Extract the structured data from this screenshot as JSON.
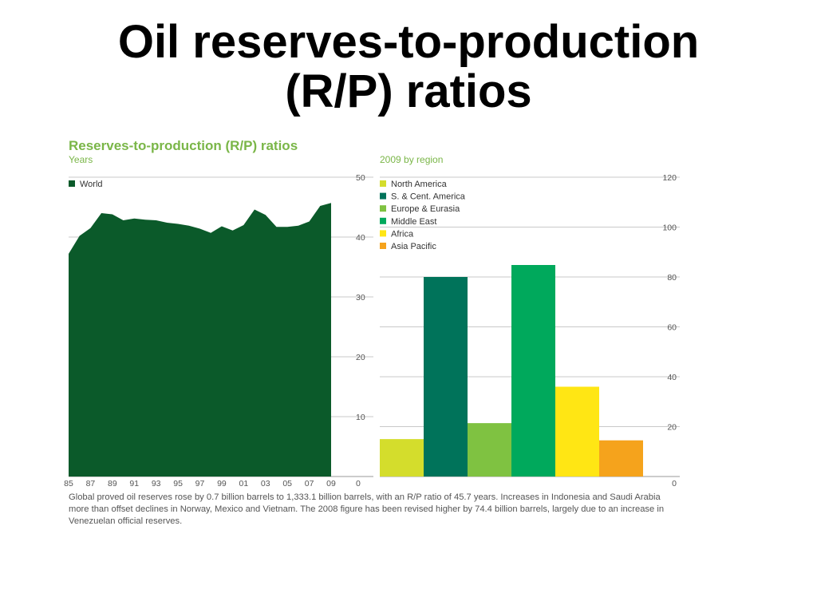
{
  "title_line1": "Oil reserves-to-production",
  "title_line2": "(R/P) ratios",
  "chart_title": "Reserves-to-production (R/P) ratios",
  "chart_subtitle": "Years",
  "region_subtitle": "2009 by region",
  "caption": "Global proved oil reserves rose by 0.7 billion barrels to 1,333.1 billion barrels, with an R/P ratio of 45.7 years. Increases in Indonesia and Saudi Arabia more than offset declines in Norway, Mexico and Vietnam. The 2008 figure has been revised higher by 74.4 billion barrels, largely due to an increase in Venezuelan official reserves.",
  "chart_data": [
    {
      "type": "area",
      "title": "Reserves-to-production (R/P) ratios",
      "ylabel": "Years",
      "ylim": [
        0,
        50
      ],
      "yticks": [
        0,
        10,
        20,
        30,
        40,
        50
      ],
      "xticks": [
        "85",
        "87",
        "89",
        "91",
        "93",
        "95",
        "97",
        "99",
        "01",
        "03",
        "05",
        "07",
        "09"
      ],
      "x": [
        1985,
        1986,
        1987,
        1988,
        1989,
        1990,
        1991,
        1992,
        1993,
        1994,
        1995,
        1996,
        1997,
        1998,
        1999,
        2000,
        2001,
        2002,
        2003,
        2004,
        2005,
        2006,
        2007,
        2008,
        2009
      ],
      "series": [
        {
          "name": "World",
          "color": "#0b5a2a",
          "values": [
            37.2,
            40.2,
            41.5,
            44.0,
            43.8,
            42.8,
            43.1,
            42.9,
            42.8,
            42.4,
            42.2,
            41.9,
            41.4,
            40.7,
            41.8,
            41.1,
            42.0,
            44.6,
            43.7,
            41.7,
            41.7,
            41.9,
            42.6,
            45.2,
            45.7
          ]
        }
      ],
      "legend": "top-left"
    },
    {
      "type": "bar",
      "title": "2009 by region",
      "ylim": [
        0,
        120
      ],
      "yticks": [
        0,
        20,
        40,
        60,
        80,
        100,
        120
      ],
      "categories": [
        "North America",
        "S. & Cent. America",
        "Europe & Eurasia",
        "Middle East",
        "Africa",
        "Asia Pacific"
      ],
      "values": [
        15.0,
        80.0,
        21.4,
        84.8,
        36.0,
        14.5
      ],
      "colors": [
        "#d4dd2c",
        "#00735a",
        "#7fc241",
        "#00a95c",
        "#ffe614",
        "#f5a31c"
      ],
      "legend": "top-left"
    }
  ]
}
